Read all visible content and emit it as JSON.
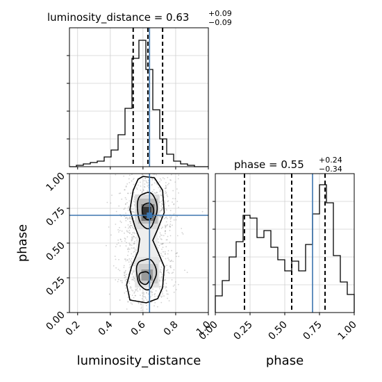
{
  "chart_data": {
    "type": "corner",
    "parameters": [
      "luminosity_distance",
      "phase"
    ],
    "truth": {
      "luminosity_distance": 0.64,
      "phase": 0.7
    },
    "colors": {
      "truth": "#3b75af",
      "hist": "#000000",
      "points": "#9a9a9a"
    },
    "panels": [
      {
        "id": "hist-luminosity-distance",
        "type": "histogram",
        "param": "luminosity_distance",
        "title": {
          "text": "luminosity_distance = 0.63",
          "plus": "+0.09",
          "minus": "−0.09"
        },
        "xlim": [
          0.15,
          1.0
        ],
        "ylim": [
          0,
          1.0
        ],
        "bin_edges": [
          0.15,
          0.1925,
          0.235,
          0.2775,
          0.32,
          0.3625,
          0.405,
          0.4475,
          0.49,
          0.5325,
          0.575,
          0.6175,
          0.66,
          0.7025,
          0.745,
          0.7875,
          0.83,
          0.8725,
          0.915,
          0.9575,
          1.0
        ],
        "counts": [
          0,
          0.01,
          0.02,
          0.03,
          0.04,
          0.07,
          0.12,
          0.23,
          0.42,
          0.78,
          0.91,
          0.7,
          0.41,
          0.2,
          0.09,
          0.04,
          0.02,
          0.01,
          0.0,
          0.0
        ],
        "quantiles": [
          0.54,
          0.63,
          0.72
        ]
      },
      {
        "id": "hist-phase",
        "type": "histogram",
        "param": "phase",
        "title": {
          "text": "phase = 0.55",
          "plus": "+0.24",
          "minus": "−0.34"
        },
        "xlim": [
          0.0,
          1.0
        ],
        "ylim": [
          0,
          1.0
        ],
        "bin_edges": [
          0.0,
          0.05,
          0.1,
          0.15,
          0.2,
          0.25,
          0.3,
          0.35,
          0.4,
          0.45,
          0.5,
          0.55,
          0.6,
          0.65,
          0.7,
          0.75,
          0.8,
          0.85,
          0.9,
          0.95,
          1.0
        ],
        "counts": [
          0.12,
          0.23,
          0.4,
          0.51,
          0.7,
          0.68,
          0.54,
          0.59,
          0.47,
          0.38,
          0.3,
          0.37,
          0.3,
          0.49,
          0.71,
          0.92,
          0.79,
          0.41,
          0.22,
          0.13
        ],
        "quantiles": [
          0.21,
          0.55,
          0.79
        ]
      },
      {
        "id": "scatter-phase-vs-luminosity-distance",
        "type": "2d-density",
        "x_param": "luminosity_distance",
        "y_param": "phase",
        "xlim": [
          0.15,
          1.0
        ],
        "ylim": [
          0.0,
          1.0
        ],
        "xticks": [
          0.2,
          0.4,
          0.6,
          0.8,
          1.0
        ],
        "yticks": [
          0.0,
          0.25,
          0.5,
          0.75,
          1.0
        ],
        "ytick_labels": [
          "0.00",
          "0.25",
          "0.50",
          "0.75",
          "1.00"
        ],
        "xlabel": "luminosity_distance",
        "ylabel": "phase",
        "modes": [
          {
            "x": 0.63,
            "y": 0.72,
            "sx": 0.045,
            "sy": 0.09
          },
          {
            "x": 0.62,
            "y": 0.28,
            "sx": 0.05,
            "sy": 0.09
          }
        ]
      }
    ],
    "phase_xticks": [
      0.0,
      0.25,
      0.5,
      0.75,
      1.0
    ],
    "phase_xtick_labels": [
      "0.00",
      "0.25",
      "0.50",
      "0.75",
      "1.00"
    ],
    "phase_xlabel": "phase",
    "lum_xtick_labels": [
      "0.2",
      "0.4",
      "0.6",
      "0.8",
      "1.0"
    ]
  }
}
